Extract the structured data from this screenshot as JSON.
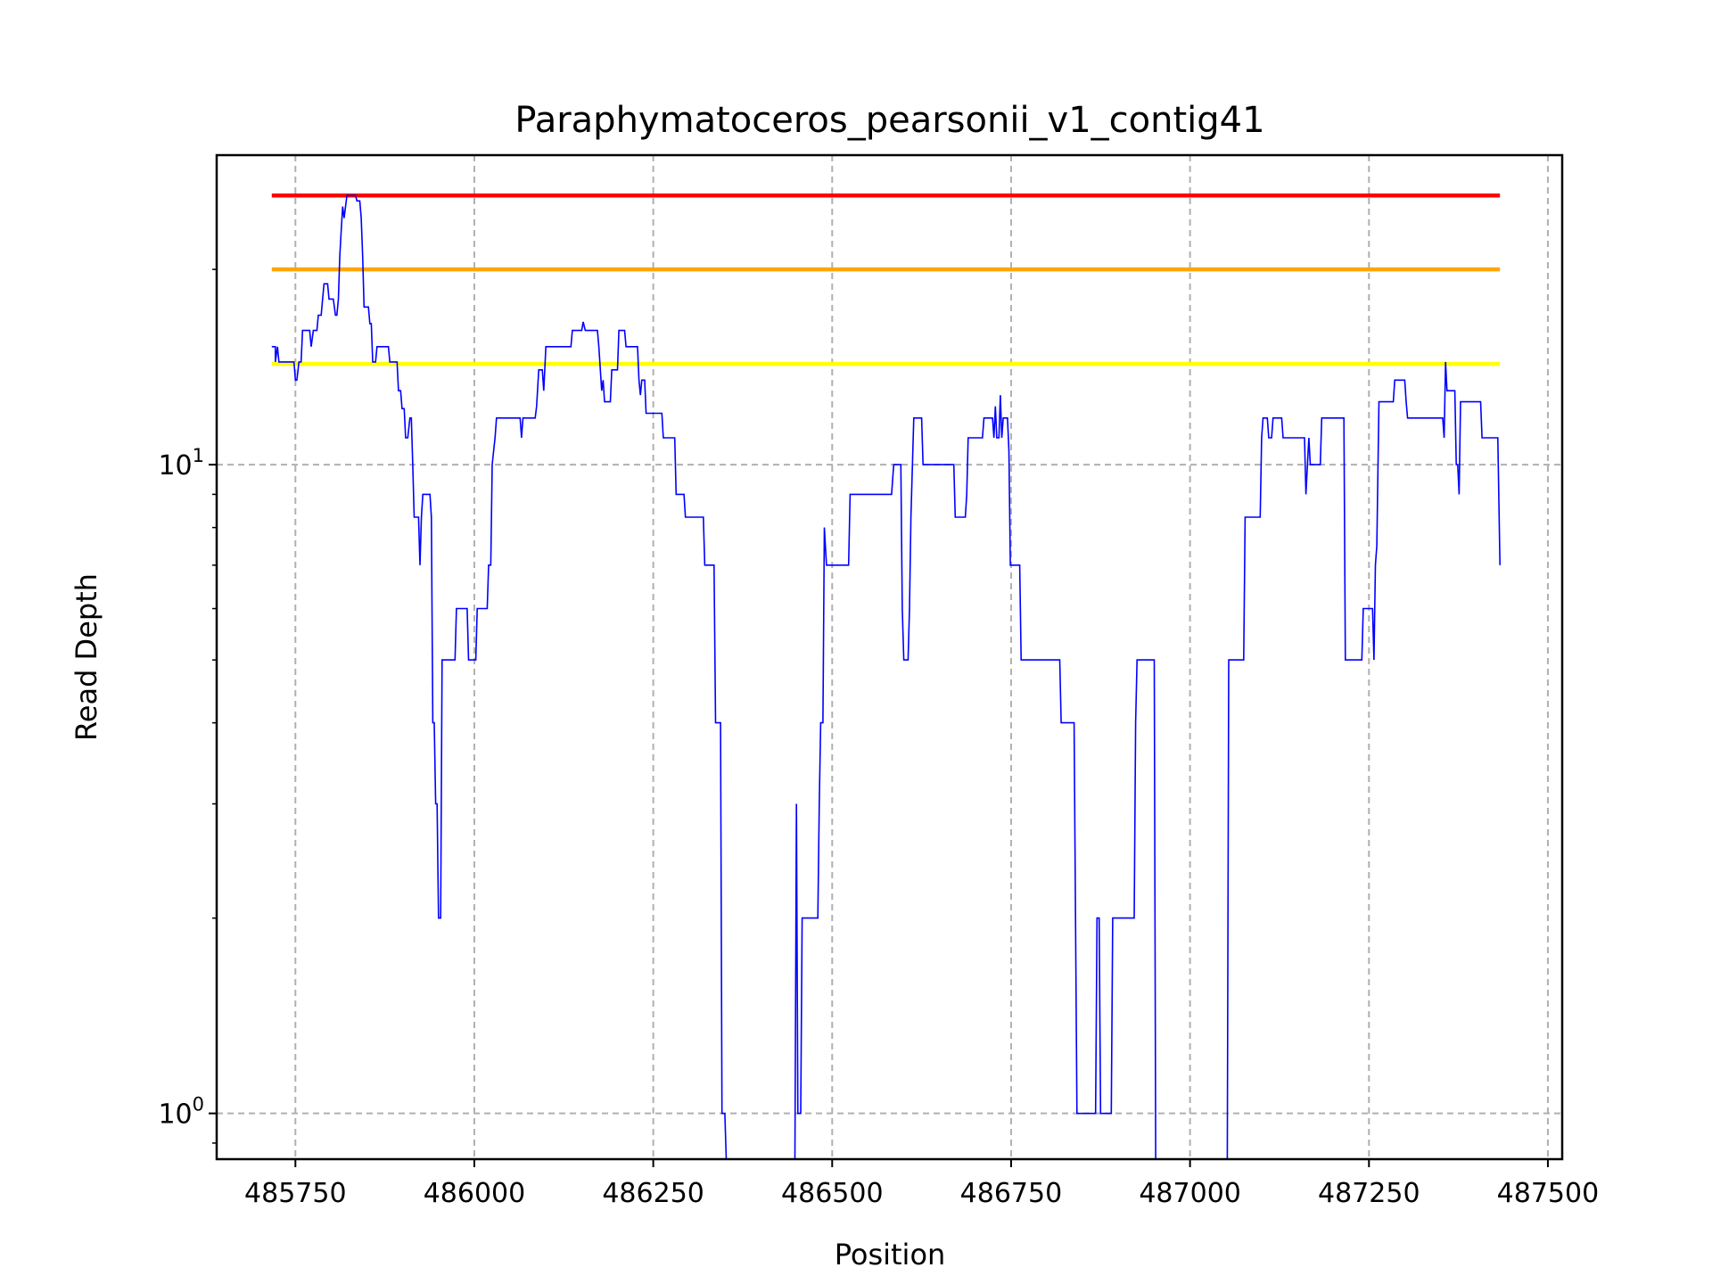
{
  "chart_data": {
    "type": "line",
    "title": "Paraphymatoceros_pearsonii_v1_contig41",
    "xlabel": "Position",
    "ylabel": "Read Depth",
    "xlim": [
      485640,
      487520
    ],
    "ylim": [
      0.85,
      30
    ],
    "yscale": "log",
    "grid": true,
    "x_ticks": [
      485750,
      486000,
      486250,
      486500,
      486750,
      487000,
      487250,
      487500
    ],
    "x_tick_labels": [
      "485750",
      "486000",
      "486250",
      "486500",
      "486750",
      "487000",
      "487250",
      "487500"
    ],
    "y_ticks": [
      1,
      10
    ],
    "y_tick_labels": [
      {
        "base": "10",
        "exp": "0"
      },
      {
        "base": "10",
        "exp": "1"
      }
    ],
    "threshold_lines": [
      {
        "y": 26,
        "color": "#ff0000",
        "x_range": [
          485717,
          487433
        ]
      },
      {
        "y": 20,
        "color": "#ffa500",
        "x_range": [
          485717,
          487433
        ]
      },
      {
        "y": 14.3,
        "color": "#ffff00",
        "x_range": [
          485717,
          487433
        ]
      }
    ],
    "series": [
      {
        "color": "#0000ff",
        "points": [
          [
            485717,
            15.2
          ],
          [
            485722,
            15.2
          ],
          [
            485722,
            14.4
          ],
          [
            485725,
            15.2
          ],
          [
            485727,
            14.4
          ],
          [
            485748,
            14.4
          ],
          [
            485750,
            13.5
          ],
          [
            485752,
            13.5
          ],
          [
            485755,
            14.4
          ],
          [
            485758,
            14.4
          ],
          [
            485760,
            16.1
          ],
          [
            485770,
            16.1
          ],
          [
            485772,
            15.2
          ],
          [
            485775,
            16.1
          ],
          [
            485780,
            16.1
          ],
          [
            485782,
            17
          ],
          [
            485786,
            17
          ],
          [
            485788,
            18
          ],
          [
            485790,
            19
          ],
          [
            485795,
            19
          ],
          [
            485797,
            18
          ],
          [
            485803,
            18
          ],
          [
            485806,
            17
          ],
          [
            485808,
            17
          ],
          [
            485810,
            18
          ],
          [
            485812,
            21
          ],
          [
            485814,
            23
          ],
          [
            485816,
            25
          ],
          [
            485818,
            24
          ],
          [
            485820,
            25
          ],
          [
            485822,
            26
          ],
          [
            485834,
            26
          ],
          [
            485836,
            25.5
          ],
          [
            485840,
            25.5
          ],
          [
            485842,
            24
          ],
          [
            485844,
            21
          ],
          [
            485846,
            17.5
          ],
          [
            485852,
            17.5
          ],
          [
            485854,
            16.5
          ],
          [
            485856,
            16.5
          ],
          [
            485858,
            14.4
          ],
          [
            485862,
            14.4
          ],
          [
            485864,
            15.2
          ],
          [
            485880,
            15.2
          ],
          [
            485882,
            14.4
          ],
          [
            485892,
            14.4
          ],
          [
            485894,
            13
          ],
          [
            485897,
            13
          ],
          [
            485899,
            12.2
          ],
          [
            485902,
            12.2
          ],
          [
            485904,
            11
          ],
          [
            485907,
            11
          ],
          [
            485910,
            11.8
          ],
          [
            485912,
            11.8
          ],
          [
            485914,
            10
          ],
          [
            485916,
            8.3
          ],
          [
            485922,
            8.3
          ],
          [
            485924,
            7
          ],
          [
            485926,
            8.3
          ],
          [
            485928,
            9
          ],
          [
            485938,
            9
          ],
          [
            485940,
            8.3
          ],
          [
            485942,
            4
          ],
          [
            485944,
            4
          ],
          [
            485946,
            3
          ],
          [
            485948,
            3
          ],
          [
            485950,
            2
          ],
          [
            485953,
            2
          ],
          [
            485955,
            5
          ],
          [
            485973,
            5
          ],
          [
            485975,
            6
          ],
          [
            485990,
            6
          ],
          [
            485992,
            5
          ],
          [
            486002,
            5
          ],
          [
            486004,
            6
          ],
          [
            486018,
            6
          ],
          [
            486020,
            7
          ],
          [
            486023,
            7
          ],
          [
            486025,
            10
          ],
          [
            486027,
            10.5
          ],
          [
            486029,
            11
          ],
          [
            486031,
            11.8
          ],
          [
            486064,
            11.8
          ],
          [
            486066,
            11
          ],
          [
            486068,
            11.8
          ],
          [
            486085,
            11.8
          ],
          [
            486087,
            12.3
          ],
          [
            486090,
            14
          ],
          [
            486095,
            14
          ],
          [
            486097,
            13
          ],
          [
            486100,
            15.2
          ],
          [
            486135,
            15.2
          ],
          [
            486137,
            16.1
          ],
          [
            486150,
            16.1
          ],
          [
            486152,
            16.6
          ],
          [
            486155,
            16.1
          ],
          [
            486172,
            16.1
          ],
          [
            486174,
            15.2
          ],
          [
            486178,
            13
          ],
          [
            486180,
            13.5
          ],
          [
            486182,
            12.5
          ],
          [
            486190,
            12.5
          ],
          [
            486192,
            14
          ],
          [
            486200,
            14
          ],
          [
            486202,
            16.1
          ],
          [
            486210,
            16.1
          ],
          [
            486212,
            15.2
          ],
          [
            486228,
            15.2
          ],
          [
            486230,
            13.5
          ],
          [
            486232,
            12.8
          ],
          [
            486234,
            13.5
          ],
          [
            486238,
            13.5
          ],
          [
            486240,
            12
          ],
          [
            486262,
            12
          ],
          [
            486264,
            11
          ],
          [
            486280,
            11
          ],
          [
            486282,
            9
          ],
          [
            486293,
            9
          ],
          [
            486295,
            8.3
          ],
          [
            486320,
            8.3
          ],
          [
            486322,
            7
          ],
          [
            486335,
            7
          ],
          [
            486337,
            4
          ],
          [
            486344,
            4
          ],
          [
            486346,
            1
          ],
          [
            486350,
            1
          ],
          [
            486352,
            0.8
          ]
        ]
      },
      {
        "color": "#0000ff",
        "points": [
          [
            486448,
            0.8
          ],
          [
            486450,
            3
          ],
          [
            486452,
            1
          ],
          [
            486456,
            1
          ],
          [
            486458,
            2
          ],
          [
            486480,
            2
          ],
          [
            486482,
            3
          ],
          [
            486484,
            4
          ],
          [
            486487,
            4
          ],
          [
            486489,
            8
          ],
          [
            486492,
            7
          ],
          [
            486523,
            7
          ],
          [
            486525,
            9
          ],
          [
            486583,
            9
          ],
          [
            486586,
            10
          ],
          [
            486596,
            10
          ],
          [
            486598,
            6
          ],
          [
            486600,
            5
          ],
          [
            486606,
            5
          ],
          [
            486608,
            6
          ],
          [
            486610,
            8.3
          ],
          [
            486614,
            11.8
          ],
          [
            486625,
            11.8
          ],
          [
            486627,
            10
          ],
          [
            486670,
            10
          ],
          [
            486672,
            8.3
          ],
          [
            486686,
            8.3
          ],
          [
            486688,
            9
          ],
          [
            486690,
            11
          ],
          [
            486710,
            11
          ],
          [
            486712,
            11.8
          ],
          [
            486724,
            11.8
          ],
          [
            486726,
            11
          ],
          [
            486728,
            12.3
          ],
          [
            486730,
            11
          ],
          [
            486733,
            11
          ],
          [
            486735,
            12.8
          ],
          [
            486737,
            11
          ],
          [
            486739,
            11.8
          ],
          [
            486745,
            11.8
          ],
          [
            486747,
            10.5
          ],
          [
            486749,
            7
          ],
          [
            486762,
            7
          ],
          [
            486764,
            5
          ],
          [
            486818,
            5
          ],
          [
            486820,
            4
          ],
          [
            486838,
            4
          ],
          [
            486840,
            2
          ],
          [
            486842,
            1
          ],
          [
            486868,
            1
          ],
          [
            486870,
            2
          ],
          [
            486873,
            2
          ],
          [
            486875,
            1
          ],
          [
            486890,
            1
          ],
          [
            486892,
            2
          ],
          [
            486922,
            2
          ],
          [
            486924,
            4
          ],
          [
            486926,
            5
          ],
          [
            486950,
            5
          ],
          [
            486952,
            0.8
          ]
        ]
      },
      {
        "color": "#0000ff",
        "points": [
          [
            487052,
            0.8
          ],
          [
            487054,
            5
          ],
          [
            487075,
            5
          ],
          [
            487077,
            8.3
          ],
          [
            487098,
            8.3
          ],
          [
            487100,
            11
          ],
          [
            487102,
            11.8
          ],
          [
            487108,
            11.8
          ],
          [
            487110,
            11
          ],
          [
            487114,
            11
          ],
          [
            487116,
            11.8
          ],
          [
            487128,
            11.8
          ],
          [
            487130,
            11
          ],
          [
            487160,
            11
          ],
          [
            487162,
            9
          ],
          [
            487164,
            10
          ],
          [
            487166,
            11
          ],
          [
            487168,
            10
          ],
          [
            487182,
            10
          ],
          [
            487184,
            11.8
          ],
          [
            487215,
            11.8
          ],
          [
            487217,
            5
          ],
          [
            487240,
            5
          ],
          [
            487242,
            6
          ],
          [
            487255,
            6
          ],
          [
            487257,
            5
          ],
          [
            487259,
            7
          ],
          [
            487261,
            7.5
          ],
          [
            487264,
            12.5
          ],
          [
            487284,
            12.5
          ],
          [
            487286,
            13.5
          ],
          [
            487300,
            13.5
          ],
          [
            487302,
            12.5
          ],
          [
            487304,
            11.8
          ],
          [
            487353,
            11.8
          ],
          [
            487355,
            11
          ],
          [
            487357,
            14.4
          ],
          [
            487359,
            13
          ],
          [
            487370,
            13
          ],
          [
            487372,
            10
          ],
          [
            487374,
            10
          ],
          [
            487376,
            9
          ],
          [
            487378,
            12.5
          ],
          [
            487406,
            12.5
          ],
          [
            487408,
            11
          ],
          [
            487430,
            11
          ],
          [
            487433,
            7
          ]
        ]
      }
    ]
  }
}
